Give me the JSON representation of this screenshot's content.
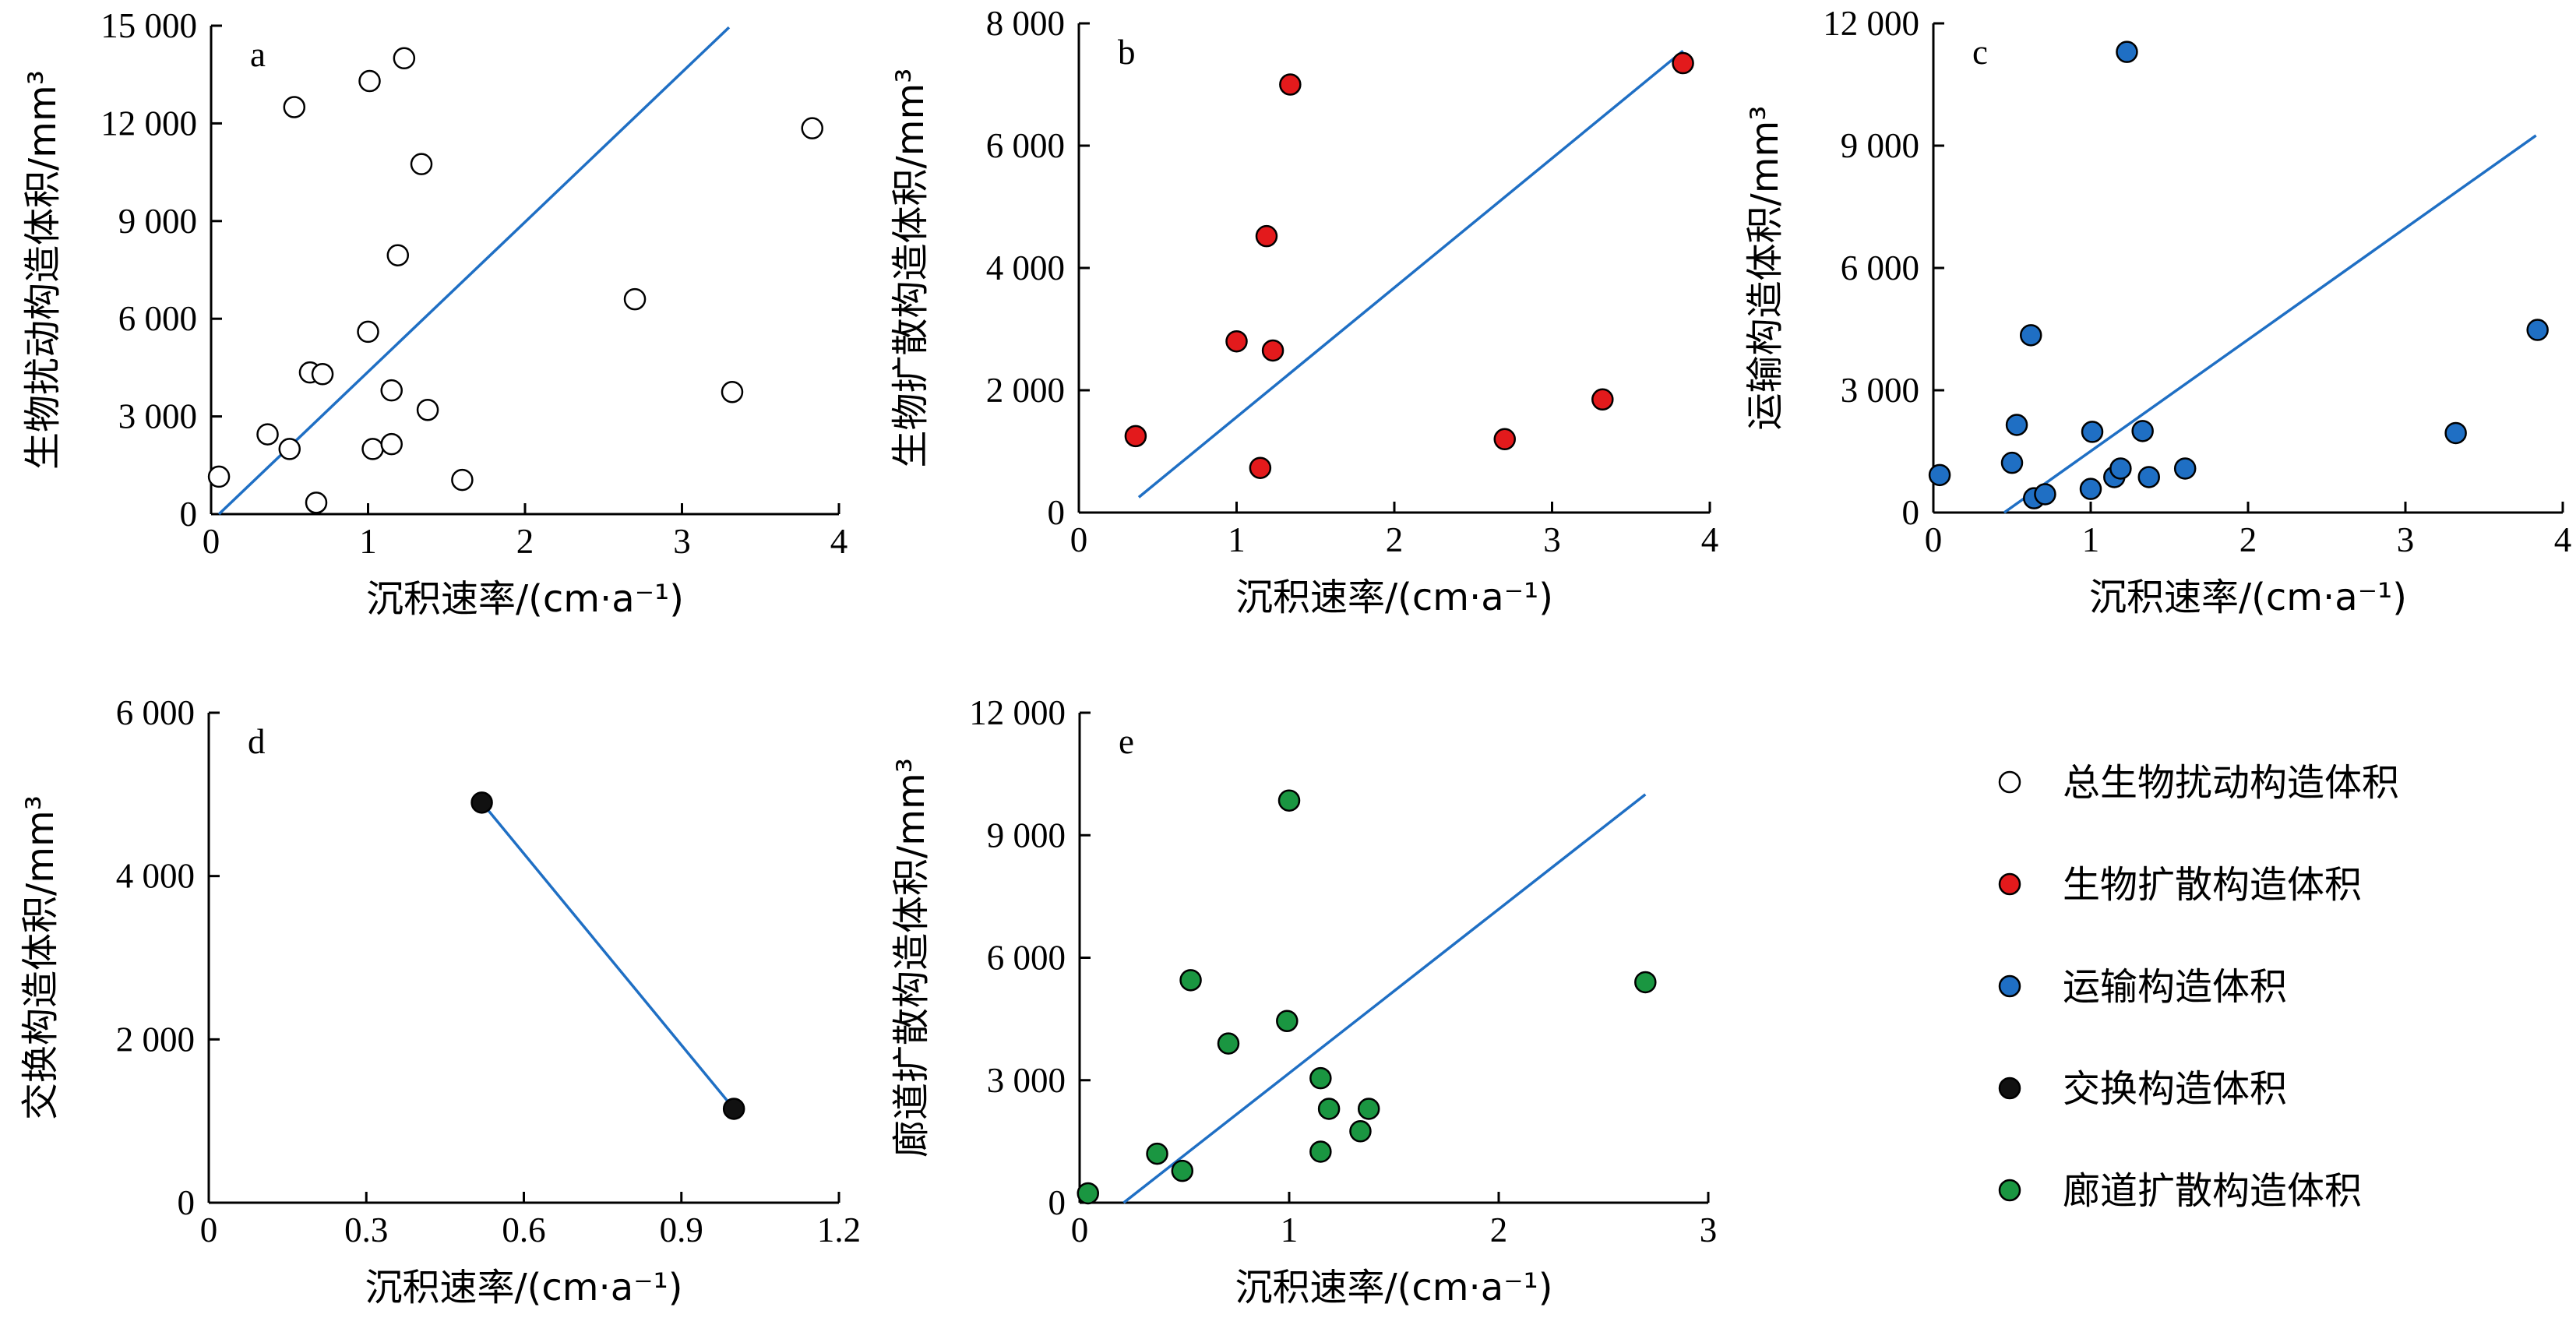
{
  "colors": {
    "line": "#1f6fc4",
    "axis": "#000000",
    "legend_marker_outline": "#000000"
  },
  "legend": {
    "items": [
      {
        "label": "总生物扰动构造体积",
        "fill": "#ffffff"
      },
      {
        "label": "生物扩散构造体积",
        "fill": "#e31a1c"
      },
      {
        "label": "运输构造体积",
        "fill": "#1f6fc4"
      },
      {
        "label": "交换构造体积",
        "fill": "#111111"
      },
      {
        "label": "廊道扩散构造体积",
        "fill": "#1a9641"
      }
    ]
  },
  "chart_data": [
    {
      "type": "scatter",
      "panel_label": "a",
      "xlabel": "沉积速率/(cm·a⁻¹)",
      "ylabel": "生物扰动构造体积/mm³",
      "xlim": [
        0,
        4
      ],
      "ylim": [
        0,
        15000
      ],
      "x_ticks": [
        0,
        1,
        2,
        3,
        4
      ],
      "x_tick_labels": [
        "0",
        "1",
        "2",
        "3",
        "4"
      ],
      "y_ticks": [
        0,
        3000,
        6000,
        9000,
        12000,
        15000
      ],
      "y_tick_labels": [
        "0",
        "3 000",
        "6 000",
        "9 000",
        "12 000",
        "15 000"
      ],
      "marker_fill": "#ffffff",
      "series_ref": "总生物扰动构造体积",
      "points": [
        [
          0.05,
          1150
        ],
        [
          0.36,
          2450
        ],
        [
          0.5,
          2000
        ],
        [
          0.53,
          12500
        ],
        [
          0.63,
          4350
        ],
        [
          0.67,
          350
        ],
        [
          0.71,
          4300
        ],
        [
          1.0,
          5600
        ],
        [
          1.01,
          13300
        ],
        [
          1.03,
          2000
        ],
        [
          1.15,
          3800
        ],
        [
          1.15,
          2150
        ],
        [
          1.19,
          7950
        ],
        [
          1.23,
          14000
        ],
        [
          1.34,
          10750
        ],
        [
          1.38,
          3200
        ],
        [
          1.6,
          1050
        ],
        [
          2.7,
          6600
        ],
        [
          3.32,
          3750
        ],
        [
          3.83,
          11850
        ]
      ],
      "trendline": [
        [
          0.05,
          0
        ],
        [
          3.3,
          14950
        ]
      ]
    },
    {
      "type": "scatter",
      "panel_label": "b",
      "xlabel": "沉积速率/(cm·a⁻¹)",
      "ylabel": "生物扩散构造体积/mm³",
      "xlim": [
        0,
        4
      ],
      "ylim": [
        0,
        8000
      ],
      "x_ticks": [
        0,
        1,
        2,
        3,
        4
      ],
      "x_tick_labels": [
        "0",
        "1",
        "2",
        "3",
        "4"
      ],
      "y_ticks": [
        0,
        2000,
        4000,
        6000,
        8000
      ],
      "y_tick_labels": [
        "0",
        "2 000",
        "4 000",
        "6 000",
        "8 000"
      ],
      "marker_fill": "#e31a1c",
      "series_ref": "生物扩散构造体积",
      "points": [
        [
          0.36,
          1250
        ],
        [
          1.0,
          2800
        ],
        [
          1.15,
          730
        ],
        [
          1.19,
          4520
        ],
        [
          1.23,
          2650
        ],
        [
          1.34,
          7000
        ],
        [
          2.7,
          1200
        ],
        [
          3.32,
          1850
        ],
        [
          3.83,
          7350
        ]
      ],
      "trendline": [
        [
          0.38,
          250
        ],
        [
          3.83,
          7550
        ]
      ]
    },
    {
      "type": "scatter",
      "panel_label": "c",
      "xlabel": "沉积速率/(cm·a⁻¹)",
      "ylabel": "运输构造体积/mm³",
      "xlim": [
        0,
        4
      ],
      "ylim": [
        0,
        12000
      ],
      "x_ticks": [
        0,
        1,
        2,
        3,
        4
      ],
      "x_tick_labels": [
        "0",
        "1",
        "2",
        "3",
        "4"
      ],
      "y_ticks": [
        0,
        3000,
        6000,
        9000,
        12000
      ],
      "y_tick_labels": [
        "0",
        "3 000",
        "6 000",
        "9 000",
        "12 000"
      ],
      "marker_fill": "#1f6fc4",
      "series_ref": "运输构造体积",
      "points": [
        [
          0.04,
          920
        ],
        [
          0.5,
          1220
        ],
        [
          0.53,
          2150
        ],
        [
          0.62,
          4350
        ],
        [
          0.64,
          350
        ],
        [
          0.71,
          450
        ],
        [
          1.01,
          1980
        ],
        [
          1.0,
          580
        ],
        [
          1.15,
          870
        ],
        [
          1.19,
          1080
        ],
        [
          1.23,
          11300
        ],
        [
          1.33,
          2000
        ],
        [
          1.37,
          870
        ],
        [
          1.6,
          1080
        ],
        [
          3.32,
          1950
        ],
        [
          3.84,
          4480
        ]
      ],
      "trendline": [
        [
          0.45,
          0
        ],
        [
          3.83,
          9250
        ]
      ]
    },
    {
      "type": "scatter",
      "panel_label": "d",
      "xlabel": "沉积速率/(cm·a⁻¹)",
      "ylabel": "交换构造体积/mm³",
      "xlim": [
        0,
        1.2
      ],
      "ylim": [
        0,
        6000
      ],
      "x_ticks": [
        0,
        0.3,
        0.6,
        0.9,
        1.2
      ],
      "x_tick_labels": [
        "0",
        "0.3",
        "0.6",
        "0.9",
        "1.2"
      ],
      "y_ticks": [
        0,
        2000,
        4000,
        6000
      ],
      "y_tick_labels": [
        "0",
        "2 000",
        "4 000",
        "6 000"
      ],
      "marker_fill": "#111111",
      "series_ref": "交换构造体积",
      "points": [
        [
          0.52,
          4900
        ],
        [
          1.0,
          1150
        ]
      ],
      "trendline": [
        [
          0.52,
          4900
        ],
        [
          1.0,
          1150
        ]
      ]
    },
    {
      "type": "scatter",
      "panel_label": "e",
      "xlabel": "沉积速率/(cm·a⁻¹)",
      "ylabel": "廊道扩散构造体积/mm³",
      "xlim": [
        0,
        3
      ],
      "ylim": [
        0,
        12000
      ],
      "x_ticks": [
        0,
        1,
        2,
        3
      ],
      "x_tick_labels": [
        "0",
        "1",
        "2",
        "3"
      ],
      "y_ticks": [
        0,
        3000,
        6000,
        9000,
        12000
      ],
      "y_tick_labels": [
        "0",
        "3 000",
        "6 000",
        "9 000",
        "12 000"
      ],
      "marker_fill": "#1a9641",
      "series_ref": "廊道扩散构造体积",
      "points": [
        [
          0.04,
          230
        ],
        [
          0.37,
          1200
        ],
        [
          0.49,
          780
        ],
        [
          0.53,
          5450
        ],
        [
          0.71,
          3900
        ],
        [
          1.0,
          9850
        ],
        [
          0.99,
          4450
        ],
        [
          1.15,
          3050
        ],
        [
          1.15,
          1250
        ],
        [
          1.19,
          2300
        ],
        [
          1.34,
          1750
        ],
        [
          1.38,
          2300
        ],
        [
          2.7,
          5400
        ]
      ],
      "trendline": [
        [
          0.21,
          0
        ],
        [
          2.7,
          10000
        ]
      ]
    }
  ]
}
